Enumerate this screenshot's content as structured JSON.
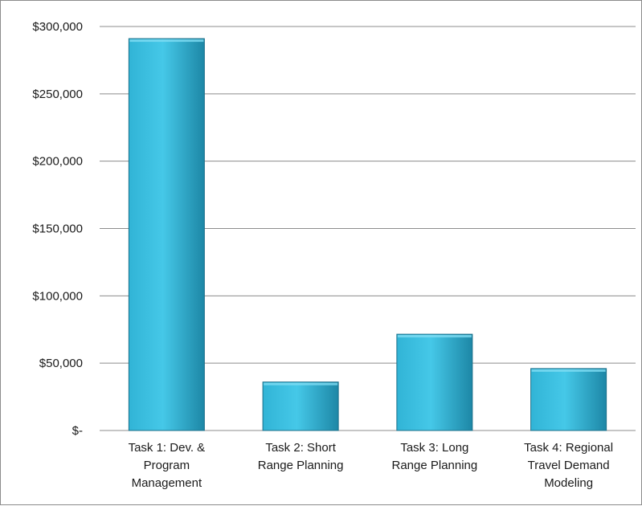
{
  "chart_data": {
    "type": "bar",
    "title": "",
    "xlabel": "",
    "ylabel": "",
    "categories": [
      [
        "Task 1:  Dev. &",
        "Program",
        "Management"
      ],
      [
        "Task 2:  Short",
        "Range Planning"
      ],
      [
        "Task 3:  Long",
        "Range Planning"
      ],
      [
        "Task 4:  Regional",
        "Travel Demand",
        "Modeling"
      ]
    ],
    "values": [
      291000,
      36000,
      71500,
      46000
    ],
    "ylim": [
      0,
      300000
    ],
    "yticks": [
      0,
      50000,
      100000,
      150000,
      200000,
      250000,
      300000
    ],
    "ytick_labels": [
      "$-",
      "$50,000",
      "$100,000",
      "$150,000",
      "$200,000",
      "$250,000",
      "$300,000"
    ],
    "grid": true,
    "legend": "none",
    "colors": {
      "bar_light": "#45c8e8",
      "bar_mid": "#31b4d6",
      "bar_dark": "#1d87a6",
      "bar_edge": "#1b6f89",
      "grid": "#8c8c8c"
    }
  }
}
